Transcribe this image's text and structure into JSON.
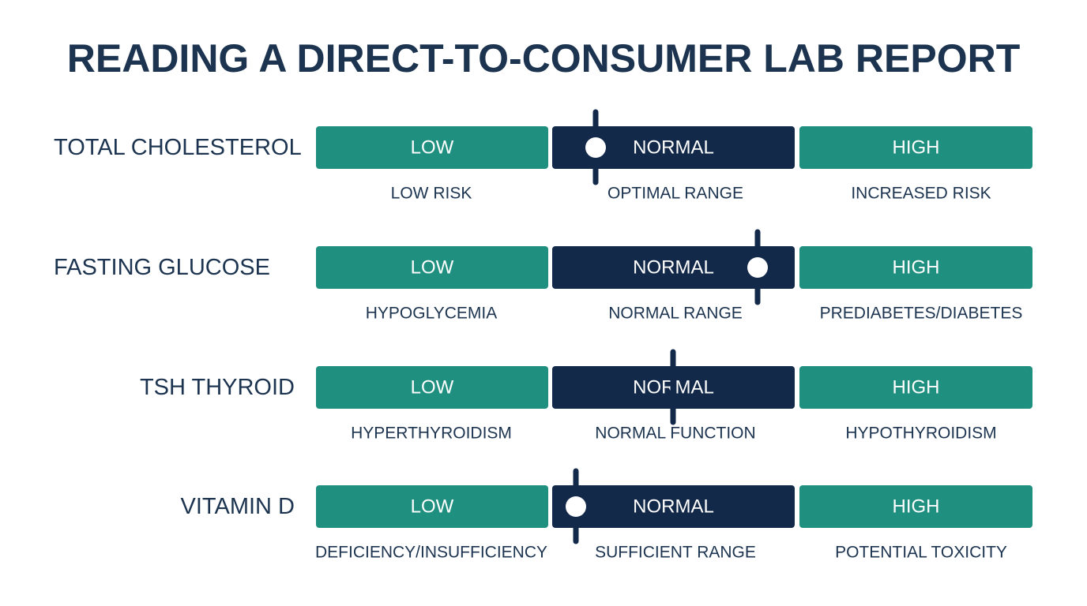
{
  "title": "READING A DIRECT-TO-CONSUMER LAB REPORT",
  "rows": [
    {
      "label": "TOTAL CHOLESTEROL",
      "segments": [
        "LOW",
        "NORMAL",
        "HIGH"
      ],
      "descriptions": [
        "LOW RISK",
        "OPTIMAL RANGE",
        "INCREASED RISK"
      ]
    },
    {
      "label": "FASTING GLUCOSE",
      "segments": [
        "LOW",
        "NORMAL",
        "HIGH"
      ],
      "descriptions": [
        "HYPOGLYCEMIA",
        "NORMAL RANGE",
        "PREDIABETES/DIABETES"
      ]
    },
    {
      "label": "TSH THYROID",
      "segments": [
        "LOW",
        "NORMAL",
        "HIGH"
      ],
      "descriptions": [
        "HYPERTHYROIDISM",
        "NORMAL FUNCTION",
        "HYPOTHYROIDISM"
      ]
    },
    {
      "label": "VITAMIN D",
      "segments": [
        "LOW",
        "NORMAL",
        "HIGH"
      ],
      "descriptions": [
        "DEFICIENCY/INSUFFICIENCY",
        "SUFFICIENT RANGE",
        "POTENTIAL TOXICITY"
      ]
    }
  ]
}
